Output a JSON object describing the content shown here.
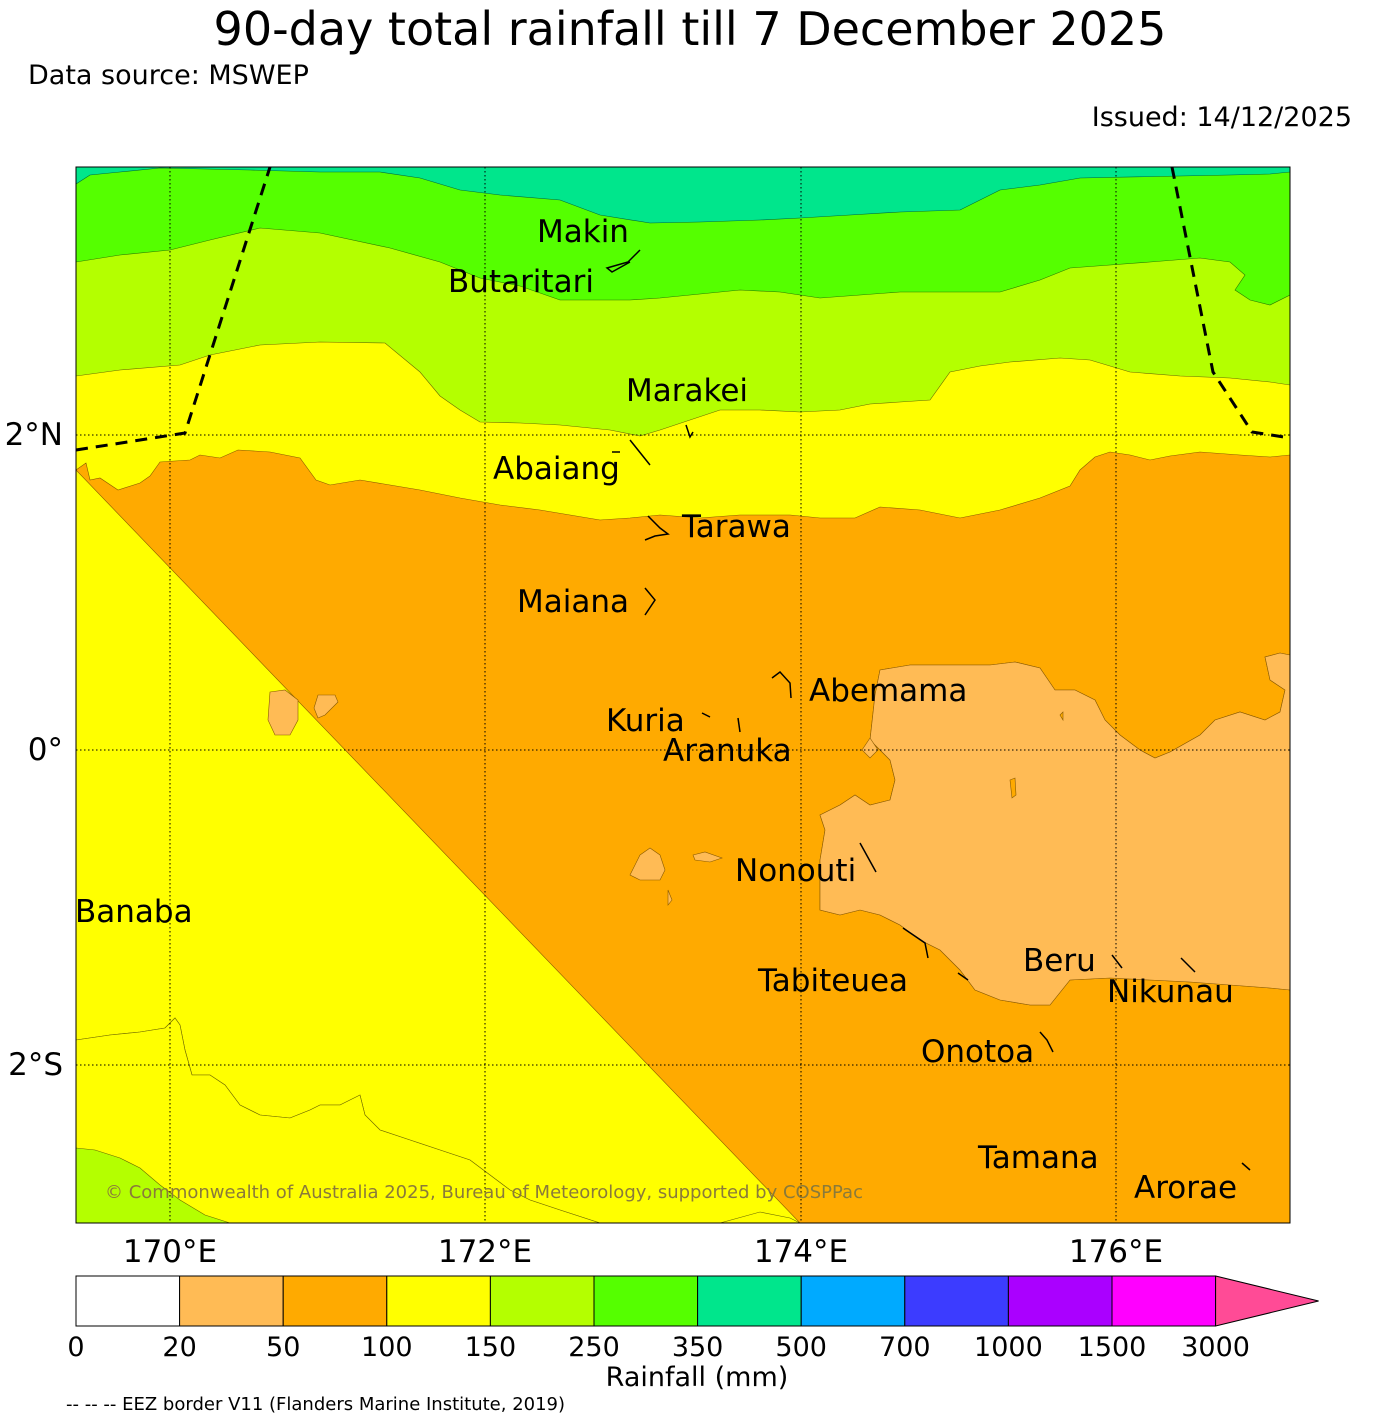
{
  "title": "90-day total rainfall till 7 December 2025",
  "data_source": "Data source: MSWEP",
  "issued": "Issued: 14/12/2025",
  "copyright": "© Commonwealth of Australia 2025, Bureau of Meteorology, supported by COSPPac",
  "footnote": "-- -- -- EEZ border V11 (Flanders Marine Institute, 2019)",
  "map": {
    "lon_labels": [
      "170°E",
      "172°E",
      "174°E",
      "176°E"
    ],
    "lat_labels": [
      "2°N",
      "0°",
      "2°S"
    ],
    "islands": [
      "Makin",
      "Butaritari",
      "Marakei",
      "Abaiang",
      "Tarawa",
      "Maiana",
      "Abemama",
      "Kuria",
      "Aranuka",
      "Nonouti",
      "Banaba",
      "Beru",
      "Tabiteuea",
      "Nikunau",
      "Onotoa",
      "Tamana",
      "Arorae"
    ]
  },
  "legend": {
    "label": "Rainfall (mm)",
    "ticks": [
      "0",
      "20",
      "50",
      "100",
      "150",
      "250",
      "350",
      "500",
      "700",
      "1000",
      "1500",
      "3000"
    ],
    "colors": [
      "#ffffff",
      "#ffbb55",
      "#ffaa00",
      "#ffff00",
      "#b4ff00",
      "#55ff00",
      "#00e68c",
      "#00aaff",
      "#3c3cff",
      "#aa00ff",
      "#ff00ff",
      "#ff4b96"
    ]
  }
}
